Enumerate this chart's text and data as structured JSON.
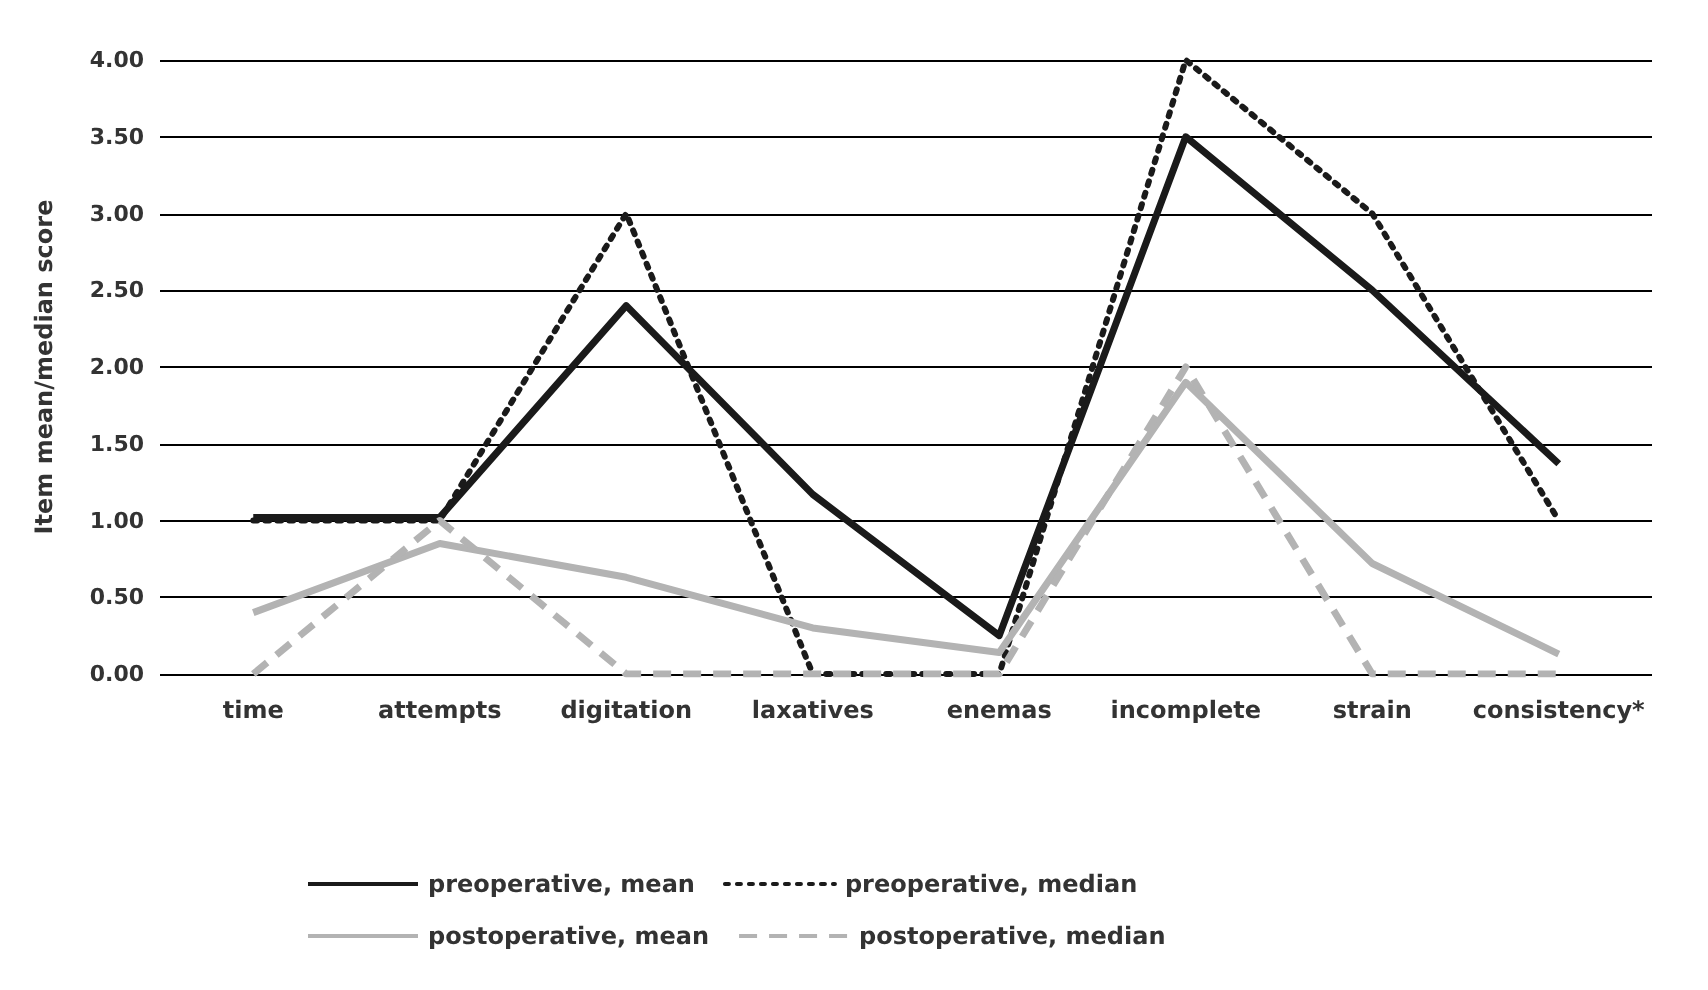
{
  "chart_data": {
    "type": "line",
    "ylabel": "Item mean/median score",
    "categories": [
      "time",
      "attempts",
      "digitation",
      "laxatives",
      "enemas",
      "incomplete",
      "strain",
      "consistency*"
    ],
    "series": [
      {
        "name": "preoperative, mean",
        "color": "#1a1a1a",
        "line_style": "solid",
        "values": [
          1.02,
          1.02,
          2.4,
          1.17,
          0.25,
          3.5,
          2.5,
          1.37
        ]
      },
      {
        "name": "preoperative, median",
        "color": "#1a1a1a",
        "line_style": "dotted",
        "values": [
          1,
          1,
          3,
          0,
          0,
          4,
          3,
          1
        ]
      },
      {
        "name": "postoperative, mean",
        "color": "#b3b3b3",
        "line_style": "solid",
        "values": [
          0.4,
          0.85,
          0.63,
          0.3,
          0.14,
          1.9,
          0.72,
          0.13
        ]
      },
      {
        "name": "postoperative, median",
        "color": "#b3b3b3",
        "line_style": "dashed",
        "values": [
          0,
          1,
          0,
          0,
          0,
          2,
          0,
          0
        ]
      }
    ],
    "ylim": [
      0,
      4
    ],
    "yticks": [
      {
        "value": 0,
        "label": "0.00"
      },
      {
        "value": 0.5,
        "label": "0.50"
      },
      {
        "value": 1,
        "label": "1.00"
      },
      {
        "value": 1.5,
        "label": "1.50"
      },
      {
        "value": 2,
        "label": "2.00"
      },
      {
        "value": 2.5,
        "label": "2.50"
      },
      {
        "value": 3,
        "label": "3.00"
      },
      {
        "value": 3.5,
        "label": "3.50"
      },
      {
        "value": 4,
        "label": "4.00"
      }
    ],
    "grid": "y",
    "legend": "bottom",
    "marker": "none"
  }
}
